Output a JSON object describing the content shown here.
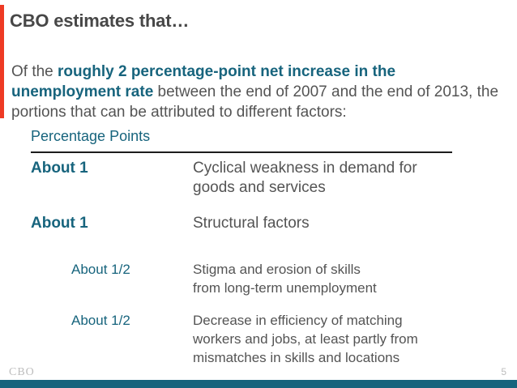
{
  "colors": {
    "accent_red": "#ee3a24",
    "teal": "#17647d",
    "teal_bar": "#17647d",
    "title_gray": "#474747",
    "body_gray": "#545454",
    "rule_dark": "#1c1c1c",
    "footer_gray": "#bdbdbd"
  },
  "slide": {
    "title": "CBO estimates that…",
    "intro": {
      "pre": "Of the ",
      "highlight": "roughly 2 percentage-point net increase in the unemployment rate",
      "post": " between the end of 2007 and the end of 2013, the portions that can be attributed to different factors:"
    },
    "table": {
      "header": "Percentage Points",
      "rows": [
        {
          "amount": "About 1",
          "description": "Cyclical weakness in demand for\ngoods and services",
          "indent": false
        },
        {
          "amount": "About 1",
          "description": "Structural factors",
          "indent": false
        },
        {
          "amount": "About 1/2",
          "description": "Stigma and erosion of skills\nfrom long-term unemployment",
          "indent": true
        },
        {
          "amount": "About 1/2",
          "description": "Decrease in efficiency of matching\nworkers and jobs, at least partly from\nmismatches in skills and locations",
          "indent": true
        }
      ]
    },
    "footer": {
      "logo": "CBO",
      "page_number": "5"
    }
  }
}
